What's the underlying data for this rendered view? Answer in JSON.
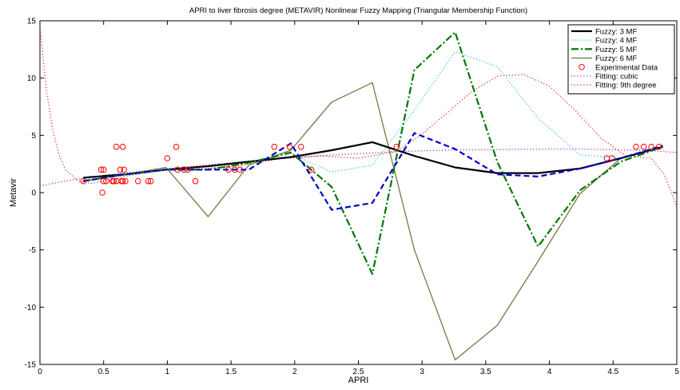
{
  "chart_data": {
    "type": "line",
    "title": "APRI to liver fibrosis degree (METAVIR) Nonlinear Fuzzy Mapping (Triangular Membership Function)",
    "xlabel": "APRI",
    "ylabel": "Metavir",
    "xlim": [
      0,
      5
    ],
    "ylim": [
      -15,
      15
    ],
    "xticks": [
      0,
      0.5,
      1,
      1.5,
      2,
      2.5,
      3,
      3.5,
      4,
      4.5,
      5
    ],
    "xtick_labels": [
      "0",
      "0.5",
      "1",
      "1.5",
      "2",
      "2.5",
      "3",
      "3.5",
      "4",
      "4.5",
      "5"
    ],
    "yticks": [
      -15,
      -10,
      -5,
      0,
      5,
      10,
      15
    ],
    "ytick_labels": [
      "-15",
      "-10",
      "-5",
      "0",
      "5",
      "10",
      "15"
    ],
    "grid": false,
    "legend_position": "top-right",
    "series": [
      {
        "name": "Fuzzy: 3 MF",
        "style": "solid",
        "color": "#000000",
        "width": 2.2,
        "x": [
          0.34,
          0.67,
          0.99,
          1.32,
          1.64,
          1.97,
          2.29,
          2.61,
          2.94,
          3.26,
          3.59,
          3.91,
          4.24,
          4.56,
          4.89
        ],
        "y": [
          1.3,
          1.6,
          2.0,
          2.3,
          2.7,
          3.1,
          3.7,
          4.4,
          3.2,
          2.2,
          1.7,
          1.7,
          2.1,
          3.0,
          4.0
        ]
      },
      {
        "name": "Fuzzy: 4 MF",
        "style": "dotted",
        "color": "#33cccc",
        "width": 1.3,
        "x": [
          0.34,
          0.67,
          0.99,
          1.32,
          1.64,
          1.97,
          2.29,
          2.61,
          2.94,
          3.26,
          3.59,
          3.91,
          4.24,
          4.56,
          4.89
        ],
        "y": [
          1.1,
          1.5,
          2.0,
          2.0,
          2.6,
          3.4,
          1.8,
          2.4,
          7.2,
          12.3,
          11.0,
          6.5,
          3.3,
          3.0,
          4.0
        ]
      },
      {
        "name": "Fuzzy: 5 MF",
        "style": "dashdot",
        "color": "#007700",
        "width": 2.2,
        "x": [
          0.34,
          0.67,
          0.99,
          1.32,
          1.64,
          1.97,
          2.29,
          2.61,
          2.94,
          3.26,
          3.59,
          3.91,
          4.24,
          4.56,
          4.89
        ],
        "y": [
          1.0,
          1.6,
          2.0,
          2.0,
          2.6,
          3.5,
          0.5,
          -7.1,
          10.7,
          14.0,
          2.7,
          -4.7,
          0.2,
          2.7,
          4.0
        ]
      },
      {
        "name": "Fuzzy: 6 MF",
        "style": "solid",
        "color": "#777744",
        "width": 1.3,
        "x": [
          0.34,
          0.67,
          0.99,
          1.32,
          1.64,
          1.97,
          2.29,
          2.61,
          2.94,
          3.26,
          3.59,
          3.91,
          4.24,
          4.56,
          4.89
        ],
        "y": [
          1.0,
          1.6,
          2.2,
          -2.1,
          2.4,
          3.7,
          7.9,
          9.6,
          -5.0,
          -14.6,
          -11.6,
          -6.0,
          -0.1,
          3.0,
          4.0
        ]
      },
      {
        "name": "",
        "style": "dashed",
        "color": "#0000cc",
        "width": 2.2,
        "x": [
          0.34,
          0.67,
          0.99,
          1.32,
          1.64,
          1.97,
          2.29,
          2.61,
          2.94,
          3.26,
          3.59,
          3.91,
          4.24,
          4.56,
          4.89
        ],
        "y": [
          1.0,
          1.6,
          2.0,
          2.0,
          2.0,
          4.3,
          -1.5,
          -0.9,
          5.2,
          3.8,
          1.6,
          1.4,
          2.1,
          3.0,
          4.1
        ]
      },
      {
        "name": "Experimental Data",
        "style": "markers",
        "color": "#ff0000",
        "x": [
          0.34,
          0.48,
          0.49,
          0.5,
          0.5,
          0.52,
          0.57,
          0.58,
          0.6,
          0.6,
          0.63,
          0.64,
          0.65,
          0.65,
          0.66,
          0.67,
          0.77,
          0.85,
          0.87,
          1.0,
          1.07,
          1.08,
          1.13,
          1.16,
          1.22,
          1.48,
          1.53,
          1.57,
          1.84,
          1.96,
          2.05,
          2.13,
          2.8,
          4.45,
          4.49,
          4.68,
          4.74,
          4.8,
          4.86
        ],
        "y": [
          1,
          2,
          0,
          1,
          2,
          1,
          1,
          1,
          1,
          4,
          2,
          1,
          4,
          1,
          2,
          1,
          1,
          1,
          1,
          3,
          4,
          2,
          2,
          2,
          1,
          2,
          2,
          2,
          4,
          4,
          4,
          2,
          4,
          3,
          3,
          4,
          4,
          4,
          4
        ]
      },
      {
        "name": "Fitting: cubic",
        "style": "dotted",
        "color": "#9933cc",
        "width": 1.3,
        "x": [
          0.0,
          0.25,
          0.5,
          0.75,
          1.0,
          1.25,
          1.5,
          1.75,
          2.0,
          2.25,
          2.5,
          2.75,
          3.0,
          3.25,
          3.5,
          3.75,
          4.0,
          4.25,
          4.5,
          4.75,
          5.0
        ],
        "y": [
          0.6,
          1.1,
          1.5,
          1.8,
          2.1,
          2.35,
          2.6,
          2.85,
          3.05,
          3.25,
          3.4,
          3.55,
          3.65,
          3.72,
          3.75,
          3.78,
          3.8,
          3.8,
          3.75,
          3.7,
          3.5
        ]
      },
      {
        "name": "Fitting: 9th degree",
        "style": "dotted",
        "color": "#dd3333",
        "width": 1.3,
        "x": [
          0.0,
          0.05,
          0.1,
          0.15,
          0.2,
          0.3,
          0.4,
          0.5,
          0.7,
          1.0,
          1.3,
          1.6,
          1.9,
          2.2,
          2.5,
          2.8,
          3.0,
          3.2,
          3.4,
          3.6,
          3.8,
          4.0,
          4.2,
          4.4,
          4.6,
          4.8,
          4.9,
          5.0
        ],
        "y": [
          14.5,
          9.0,
          5.5,
          3.3,
          2.0,
          1.0,
          0.8,
          1.0,
          1.5,
          2.0,
          2.1,
          2.4,
          3.0,
          3.2,
          3.0,
          3.6,
          5.1,
          7.0,
          8.9,
          10.2,
          10.3,
          9.3,
          7.2,
          4.8,
          3.2,
          3.0,
          1.6,
          -1.2
        ]
      }
    ]
  }
}
